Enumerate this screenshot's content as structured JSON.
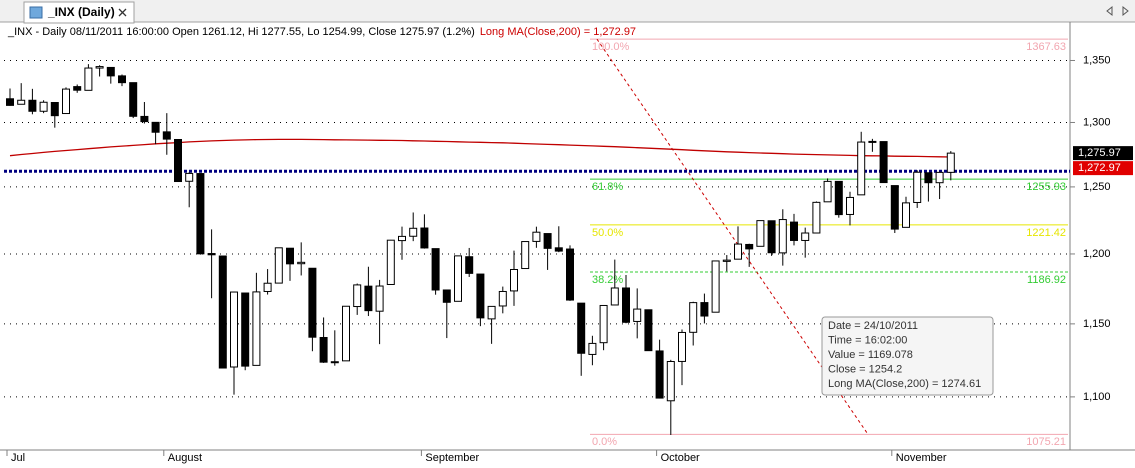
{
  "tab_title": "_INX (Daily)",
  "header": {
    "quote": "_INX - Daily 08/11/2011 16:00:00 Open 1261.12, Hi 1277.55, Lo 1254.99, Close 1275.97 (1.2%)",
    "indicator": "Long MA(Close,200) = 1,272.97"
  },
  "tooltip": [
    "Date = 24/10/2011",
    "Time = 16:02:00",
    "Value = 1169.078",
    "Close = 1254.2",
    "Long MA(Close,200) = 1274.61"
  ],
  "chart_data": {
    "type": "candlestick",
    "log_scale": true,
    "grid": true,
    "ylim": [
      1065,
      1382
    ],
    "yticks": [
      {
        "value": 1350,
        "label": "1,350"
      },
      {
        "value": 1300,
        "label": "1,300"
      },
      {
        "value": 1250,
        "label": "1,250"
      },
      {
        "value": 1200,
        "label": "1,200"
      },
      {
        "value": 1150,
        "label": "1,150"
      },
      {
        "value": 1100,
        "label": "1,100"
      }
    ],
    "categories": [
      "Jul",
      null,
      null,
      null,
      null,
      null,
      null,
      null,
      null,
      null,
      null,
      null,
      null,
      null,
      "August",
      null,
      null,
      null,
      null,
      null,
      null,
      null,
      null,
      null,
      null,
      null,
      null,
      null,
      null,
      null,
      null,
      null,
      null,
      null,
      null,
      null,
      null,
      "September",
      null,
      null,
      null,
      null,
      null,
      null,
      null,
      null,
      null,
      null,
      null,
      null,
      null,
      null,
      null,
      null,
      null,
      null,
      null,
      null,
      "October",
      null,
      null,
      null,
      null,
      null,
      null,
      null,
      null,
      null,
      null,
      null,
      null,
      null,
      null,
      null,
      null,
      null,
      null,
      null,
      null,
      "November",
      null,
      null,
      null,
      null,
      null
    ],
    "open": [
      1318.9,
      1314.5,
      1317.7,
      1308.9,
      1315.9,
      1307.1,
      1328.7,
      1325.7,
      1343.8,
      1344.3,
      1337.4,
      1331.9,
      1304.8,
      1300.1,
      1292.6,
      1286.6,
      1254.3,
      1260.2,
      1200.3,
      1198.5,
      1120.2,
      1171.8,
      1121.3,
      1172.9,
      1178.9,
      1204.2,
      1192.9,
      1189.6,
      1140.5,
      1123.6,
      1124.4,
      1162.2,
      1176.7,
      1158.9,
      1177.9,
      1209.8,
      1213.0,
      1219.1,
      1203.9,
      1173.97,
      1165.9,
      1197.98,
      1185.4,
      1153.5,
      1162.6,
      1173.3,
      1189.4,
      1209.2,
      1214.99,
      1204.5,
      1203.6,
      1164.6,
      1128.8,
      1136.9,
      1163.3,
      1175.4,
      1151.7,
      1159.9,
      1131.2,
      1097.4,
      1124.0,
      1144.1,
      1165.0,
      1158.2,
      1194.6,
      1196.2,
      1206.96,
      1205.6,
      1224.5,
      1200.8,
      1223.5,
      1209.9,
      1215.4,
      1238.7,
      1254.2,
      1229.2,
      1243.97,
      1284.4,
      1284.96,
      1251.0,
      1219.6,
      1238.2,
      1260.8,
      1253.2,
      1261.12
    ],
    "high": [
      1327.2,
      1331.5,
      1326.9,
      1317.7,
      1315.9,
      1328.1,
      1330.4,
      1347.0,
      1346.1,
      1344.3,
      1338.5,
      1331.9,
      1316.3,
      1300.1,
      1307.4,
      1286.6,
      1261.2,
      1260.2,
      1218.1,
      1198.5,
      1172.9,
      1171.8,
      1186.3,
      1189.0,
      1204.5,
      1204.2,
      1208.5,
      1189.6,
      1154.5,
      1145.5,
      1162.4,
      1178.6,
      1190.7,
      1181.2,
      1210.3,
      1220.1,
      1230.7,
      1229.3,
      1203.9,
      1173.97,
      1198.6,
      1204.4,
      1185.4,
      1162.5,
      1176.4,
      1202.4,
      1209.1,
      1220.1,
      1214.99,
      1220.4,
      1206.3,
      1164.6,
      1141.7,
      1162.5,
      1195.9,
      1184.7,
      1175.1,
      1159.9,
      1138.99,
      1125.1,
      1146.1,
      1165.6,
      1171.4,
      1194.9,
      1199.2,
      1220.3,
      1207.5,
      1224.6,
      1224.5,
      1233.1,
      1229.6,
      1219.4,
      1239.0,
      1256.5,
      1254.2,
      1246.3,
      1292.66,
      1287.1,
      1284.96,
      1251.0,
      1242.5,
      1262.7,
      1260.8,
      1261.7,
      1277.55
    ],
    "low": [
      1313.3,
      1314.5,
      1306.5,
      1307.4,
      1295.9,
      1307.1,
      1323.7,
      1325.7,
      1336.9,
      1331.1,
      1329.1,
      1303.5,
      1299.2,
      1282.9,
      1274.7,
      1254.0,
      1234.6,
      1199.5,
      1168.1,
      1119.3,
      1101.5,
      1118.0,
      1121.3,
      1170.7,
      1178.9,
      1180.5,
      1184.4,
      1131.0,
      1123.0,
      1121.1,
      1124.4,
      1156.3,
      1155.5,
      1135.9,
      1177.9,
      1195.8,
      1209.4,
      1203.9,
      1170.6,
      1140.1,
      1165.9,
      1183.3,
      1148.4,
      1136.1,
      1157.4,
      1162.7,
      1189.4,
      1204.5,
      1188.4,
      1201.3,
      1166.2,
      1114.2,
      1121.4,
      1131.7,
      1163.3,
      1150.4,
      1139.9,
      1131.3,
      1098.9,
      1074.8,
      1107.9,
      1134.95,
      1150.3,
      1158.2,
      1187.3,
      1196.2,
      1190.6,
      1205.6,
      1198.6,
      1191.5,
      1206.3,
      1197.3,
      1215.4,
      1238.7,
      1226.8,
      1221.1,
      1243.97,
      1277.0,
      1253.2,
      1215.4,
      1219.6,
      1234.1,
      1238.9,
      1240.8,
      1254.99
    ],
    "close": [
      1313.6,
      1317.7,
      1308.9,
      1316.1,
      1305.4,
      1326.7,
      1325.8,
      1343.8,
      1345.0,
      1337.4,
      1331.9,
      1304.9,
      1300.7,
      1292.3,
      1286.9,
      1254.1,
      1260.3,
      1200.1,
      1199.4,
      1119.5,
      1172.5,
      1120.8,
      1172.6,
      1178.8,
      1204.5,
      1192.8,
      1193.9,
      1140.7,
      1123.5,
      1123.8,
      1162.4,
      1177.6,
      1159.3,
      1176.8,
      1210.1,
      1212.9,
      1218.9,
      1204.4,
      1173.97,
      1165.2,
      1198.6,
      1185.9,
      1154.2,
      1162.3,
      1172.9,
      1188.7,
      1209.1,
      1216.0,
      1204.1,
      1202.1,
      1166.8,
      1129.6,
      1136.4,
      1162.95,
      1175.4,
      1151.1,
      1160.4,
      1131.4,
      1099.2,
      1123.95,
      1144.0,
      1164.97,
      1155.5,
      1194.9,
      1195.5,
      1207.25,
      1203.7,
      1224.6,
      1200.9,
      1225.4,
      1209.9,
      1215.4,
      1238.3,
      1254.2,
      1229.1,
      1242.0,
      1284.6,
      1285.1,
      1253.3,
      1218.3,
      1237.9,
      1261.2,
      1253.2,
      1261.1,
      1275.97
    ],
    "ma": {
      "color": "#c00000",
      "values": [
        1274.0,
        1274.9,
        1275.7,
        1276.5,
        1277.3,
        1278.0,
        1278.7,
        1279.4,
        1280.1,
        1280.8,
        1281.4,
        1282.0,
        1282.6,
        1283.2,
        1283.7,
        1284.2,
        1284.7,
        1285.1,
        1285.5,
        1285.8,
        1286.1,
        1286.3,
        1286.5,
        1286.6,
        1286.7,
        1286.7,
        1286.7,
        1286.6,
        1286.5,
        1286.4,
        1286.3,
        1286.2,
        1286.1,
        1286.0,
        1285.9,
        1285.8,
        1285.6,
        1285.4,
        1285.2,
        1285.0,
        1284.8,
        1284.6,
        1284.4,
        1284.2,
        1284.0,
        1283.7,
        1283.4,
        1283.1,
        1282.8,
        1282.5,
        1282.2,
        1281.9,
        1281.6,
        1281.3,
        1281.0,
        1280.6,
        1280.2,
        1279.8,
        1279.4,
        1279.0,
        1278.6,
        1278.2,
        1277.8,
        1277.4,
        1277.0,
        1276.7,
        1276.4,
        1276.1,
        1275.8,
        1275.5,
        1275.2,
        1275.0,
        1274.8,
        1274.61,
        1274.4,
        1274.2,
        1274.0,
        1273.9,
        1273.8,
        1273.6,
        1273.5,
        1273.4,
        1273.3,
        1273.1,
        1272.97
      ]
    },
    "hline": {
      "value": 1262,
      "color": "#000080"
    },
    "fibonacci": {
      "trend_color": "#cc0000",
      "levels": [
        {
          "pct": "100.0%",
          "value": 1367.63,
          "color": "#f2a6b0"
        },
        {
          "pct": "61.8%",
          "value": 1255.93,
          "color": "#33cc33"
        },
        {
          "pct": "50.0%",
          "value": 1221.42,
          "color": "#e6e600"
        },
        {
          "pct": "38.2%",
          "value": 1186.92,
          "color": "#33cc33"
        },
        {
          "pct": "0.0%",
          "value": 1075.21,
          "color": "#f2a6b0"
        }
      ]
    },
    "price_tags": [
      {
        "value": 1275.97,
        "label": "1,275.97",
        "color": "#000000"
      },
      {
        "value": 1272.97,
        "label": "1,272.97",
        "color": "#e00000"
      }
    ]
  }
}
